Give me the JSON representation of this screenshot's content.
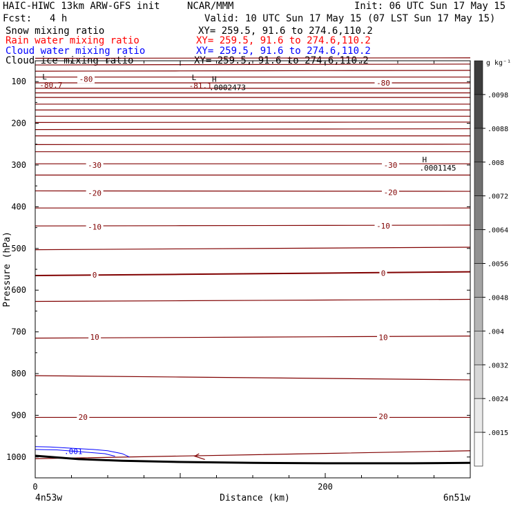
{
  "header": {
    "model": "HAIC-HIWC 13km ARW-GFS init",
    "org": "NCAR/MMM",
    "init": "Init: 06 UTC Sun 17 May 15",
    "fcst_label": "Fcst:",
    "fcst_value": "4 h",
    "valid": "Valid: 10 UTC Sun 17 May 15 (07 LST Sun 17 May 15)"
  },
  "fields": [
    {
      "name": "Snow mixing ratio",
      "xy": "XY= 259.5, 91.6 to 274.6,110.2",
      "color": "#000000"
    },
    {
      "name": "Rain water mixing ratio",
      "xy": "XY= 259.5, 91.6 to 274.6,110.2",
      "color": "#ff0000"
    },
    {
      "name": "Cloud water mixing ratio",
      "xy": "XY= 259.5, 91.6 to 274.6,110.2",
      "color": "#0000ff"
    },
    {
      "name": "Cloud ice mixing ratio",
      "xy": "XY= 259.5, 91.6 to 274.6,110.2",
      "color": "#000000"
    }
  ],
  "chart_data": {
    "type": "cross-section contour",
    "xlabel": "Distance (km)",
    "ylabel": "Pressure (hPa)",
    "xlim": [
      0,
      300
    ],
    "ylim": [
      1050,
      50
    ],
    "xticks": [
      0,
      200
    ],
    "yticks": [
      100,
      200,
      300,
      400,
      500,
      600,
      700,
      800,
      900,
      1000
    ],
    "x_left_label": "4n53w",
    "x_right_label": "6n51w",
    "isotherm_color": "#800000",
    "isotherms": [
      {
        "p_left": 44,
        "p_right": 43
      },
      {
        "p_left": 60,
        "p_right": 58
      },
      {
        "p_left": 75,
        "p_right": 73
      },
      {
        "p_left": 89,
        "p_right": 89
      },
      {
        "p_left": 103,
        "p_right": 103
      },
      {
        "p_left": 116,
        "p_right": 116
      },
      {
        "p_left": 127,
        "p_right": 127
      },
      {
        "p_left": 138,
        "p_right": 138
      },
      {
        "p_left": 154,
        "p_right": 154
      },
      {
        "p_left": 168,
        "p_right": 168
      },
      {
        "p_left": 183,
        "p_right": 183
      },
      {
        "p_left": 198,
        "p_right": 197
      },
      {
        "p_left": 215,
        "p_right": 213
      },
      {
        "p_left": 230,
        "p_right": 230
      },
      {
        "p_left": 251,
        "p_right": 250
      },
      {
        "p_left": 268,
        "p_right": 268
      },
      {
        "p_left": 297,
        "p_right": 297
      },
      {
        "p_left": 324,
        "p_right": 324
      },
      {
        "p_left": 362,
        "p_right": 363
      },
      {
        "p_left": 403,
        "p_right": 403
      },
      {
        "p_left": 446,
        "p_right": 444
      },
      {
        "p_left": 503,
        "p_right": 497
      },
      {
        "p_left": 565,
        "p_right": 556
      },
      {
        "p_left": 627,
        "p_right": 622
      },
      {
        "p_left": 715,
        "p_right": 710
      },
      {
        "p_left": 805,
        "p_right": 815
      },
      {
        "p_left": 905,
        "p_right": 905
      },
      {
        "p_left": 1004,
        "p_right": 985
      }
    ],
    "contour_labels": [
      {
        "text": "-80",
        "x": 35,
        "p": 94
      },
      {
        "text": "-80",
        "x": 240,
        "p": 103
      },
      {
        "text": "-30",
        "x": 41,
        "p": 300
      },
      {
        "text": "-30",
        "x": 245,
        "p": 300
      },
      {
        "text": "-20",
        "x": 41,
        "p": 367
      },
      {
        "text": "-20",
        "x": 245,
        "p": 365
      },
      {
        "text": "-10",
        "x": 41,
        "p": 448
      },
      {
        "text": "-10",
        "x": 240,
        "p": 446
      },
      {
        "text": "0",
        "x": 41,
        "p": 563
      },
      {
        "text": "0",
        "x": 240,
        "p": 559
      },
      {
        "text": "10",
        "x": 41,
        "p": 712
      },
      {
        "text": "10",
        "x": 240,
        "p": 713
      },
      {
        "text": "20",
        "x": 33,
        "p": 904
      },
      {
        "text": "20",
        "x": 240,
        "p": 903
      }
    ],
    "extrema": [
      {
        "mark": "L",
        "value": "-80.7",
        "x": 3,
        "p": 103
      },
      {
        "mark": "L",
        "value": "-81.1",
        "x": 106,
        "p": 105
      },
      {
        "mark": "H",
        "value": ".0002473",
        "x": 120,
        "p": 109
      },
      {
        "mark": "H",
        "value": ".0001145",
        "x": 265,
        "p": 302
      }
    ],
    "cloud_water_label": {
      "text": ".001",
      "x": 20,
      "p": 986
    },
    "ground_pressure": [
      [
        0,
        997
      ],
      [
        30,
        1005
      ],
      [
        60,
        1009
      ],
      [
        100,
        1012
      ],
      [
        150,
        1014
      ],
      [
        200,
        1015
      ],
      [
        260,
        1015
      ],
      [
        300,
        1014
      ]
    ],
    "colorbar": {
      "unit": "g kg⁻¹",
      "labels": [
        ".0098",
        ".0088",
        ".008",
        ".0072",
        ".0064",
        ".0056",
        ".0048",
        ".004",
        ".0032",
        ".0024",
        ".0015"
      ]
    }
  }
}
